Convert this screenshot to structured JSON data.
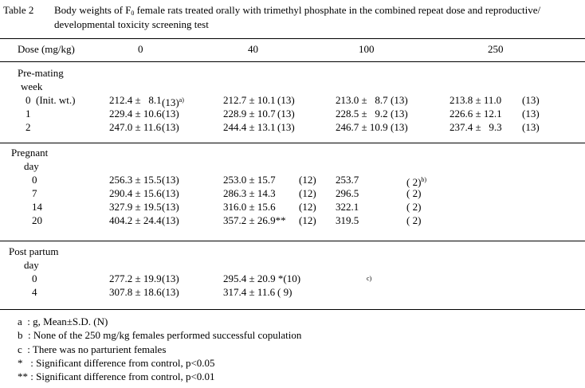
{
  "caption": {
    "label": "Table 2",
    "line1_pre": "Body weights of F",
    "line1_sub": "0",
    "line1_post": " female rats treated orally with trimethyl phosphate in the combined repeat dose and reproductive/",
    "line2": "developmental toxicity screening test"
  },
  "header": {
    "dose_label": "Dose (mg/kg)",
    "doses": [
      "0",
      "40",
      "100",
      "250"
    ]
  },
  "sections": [
    {
      "title": "Pre-mating",
      "unit": "week",
      "rows": [
        {
          "label": "0  (Init. wt.)",
          "cells": [
            {
              "v": "212.4 ±   8.1",
              "n": "(13)",
              "note": "a)"
            },
            {
              "v": "212.7 ± 10.1",
              "n": "(13)"
            },
            {
              "v": "213.0 ±   8.7",
              "n": "(13)"
            },
            {
              "v": "213.8 ± 11.0",
              "n": "(13)"
            }
          ]
        },
        {
          "label": "1",
          "cells": [
            {
              "v": "229.4 ± 10.6",
              "n": "(13)"
            },
            {
              "v": "228.9 ± 10.7",
              "n": "(13)"
            },
            {
              "v": "228.5 ±   9.2",
              "n": "(13)"
            },
            {
              "v": "226.6 ± 12.1",
              "n": "(13)"
            }
          ]
        },
        {
          "label": "2",
          "cells": [
            {
              "v": "247.0 ± 11.6",
              "n": "(13)"
            },
            {
              "v": "244.4 ± 13.1",
              "n": "(13)"
            },
            {
              "v": "246.7 ± 10.9",
              "n": "(13)"
            },
            {
              "v": "237.4 ±   9.3",
              "n": "(13)"
            }
          ]
        }
      ]
    },
    {
      "title": "Pregnant",
      "unit": "day",
      "rows": [
        {
          "label": "0",
          "cells": [
            {
              "v": "256.3 ± 15.5",
              "n": "(13)"
            },
            {
              "v": "253.0 ± 15.7",
              "n": "(12)"
            },
            {
              "v": "253.7",
              "n": "( 2)",
              "note": "b)"
            }
          ]
        },
        {
          "label": "7",
          "cells": [
            {
              "v": "290.4 ± 15.6",
              "n": "(13)"
            },
            {
              "v": "286.3 ± 14.3",
              "n": "(12)"
            },
            {
              "v": "296.5",
              "n": "( 2)"
            }
          ]
        },
        {
          "label": "14",
          "cells": [
            {
              "v": "327.9 ± 19.5",
              "n": "(13)"
            },
            {
              "v": "316.0 ± 15.6",
              "n": "(12)"
            },
            {
              "v": "322.1",
              "n": "( 2)"
            }
          ]
        },
        {
          "label": "20",
          "cells": [
            {
              "v": "404.2 ± 24.4",
              "n": "(13)"
            },
            {
              "v": "357.2 ± 26.9**",
              "n": "(12)"
            },
            {
              "v": "319.5",
              "n": "( 2)"
            }
          ]
        }
      ]
    },
    {
      "title": "Post partum",
      "unit": "day",
      "rows": [
        {
          "label": "0",
          "cells": [
            {
              "v": "277.2 ± 19.9",
              "n": "(13)"
            },
            {
              "v": "295.4 ± 20.9 *(10)",
              "n": ""
            },
            {
              "v": "",
              "n": "",
              "note": "c)"
            }
          ]
        },
        {
          "label": "4",
          "cells": [
            {
              "v": "307.8 ± 18.6",
              "n": "(13)"
            },
            {
              "v": "317.4 ± 11.6",
              "n": "( 9)"
            }
          ]
        }
      ]
    }
  ],
  "footnotes": [
    "a  : g, Mean±S.D. (N)",
    "b  : None of the 250 mg/kg females performed successful copulation",
    "c  : There was no parturient females",
    "*   : Significant difference from control, p<0.05",
    "** : Significant difference from control, p<0.01"
  ]
}
